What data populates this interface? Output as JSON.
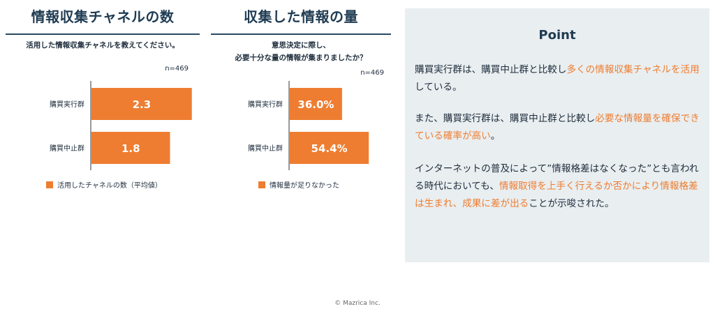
{
  "chart_data": [
    {
      "type": "bar",
      "orientation": "horizontal",
      "title": "情報収集チャネルの数",
      "subtitle": "活用した情報収集チャネルを教えてください。",
      "n_label": "n=469",
      "categories": [
        "購買実行群",
        "購買中止群"
      ],
      "series": [
        {
          "name": "活用したチャネルの数（平均値）",
          "values": [
            2.3,
            1.8
          ]
        }
      ],
      "data_labels": [
        "2.3",
        "1.8"
      ],
      "xlim": [
        0,
        2.8
      ],
      "legend": "bottom",
      "color": "#ee7d31"
    },
    {
      "type": "bar",
      "orientation": "horizontal",
      "title": "収集した情報の量",
      "subtitle_lines": [
        "意思決定に際し、",
        "必要十分な量の情報が集まりましたか？"
      ],
      "n_label": "n=469",
      "categories": [
        "購買実行群",
        "購買中止群"
      ],
      "series": [
        {
          "name": "情報量が足りなかった",
          "values": [
            36.0,
            54.4
          ]
        }
      ],
      "data_labels": [
        "36.0%",
        "54.4%"
      ],
      "xlim": [
        0,
        100
      ],
      "legend": "bottom",
      "color": "#ee7d31"
    }
  ],
  "point": {
    "title": "Point",
    "paragraphs": [
      [
        {
          "text": "購買実行群は、購買中止群と比較し",
          "hl": false
        },
        {
          "text": "多くの情報収集チャネルを活用",
          "hl": true
        },
        {
          "text": "している。",
          "hl": false
        }
      ],
      [
        {
          "text": "また、購買実行群は、購買中止群と比較し",
          "hl": false
        },
        {
          "text": "必要な情報量を確保できている確率が高い",
          "hl": true
        },
        {
          "text": "。",
          "hl": false
        }
      ],
      [
        {
          "text": "インターネットの普及によって”情報格差はなくなった”とも言われる時代においても、",
          "hl": false
        },
        {
          "text": "情報取得を上手く行えるか否かにより情報格差は生まれ、成果に差が出る",
          "hl": true
        },
        {
          "text": "ことが示唆された。",
          "hl": false
        }
      ]
    ],
    "highlight_color": "#ee7d31"
  },
  "copyright": "© Mazrica Inc."
}
